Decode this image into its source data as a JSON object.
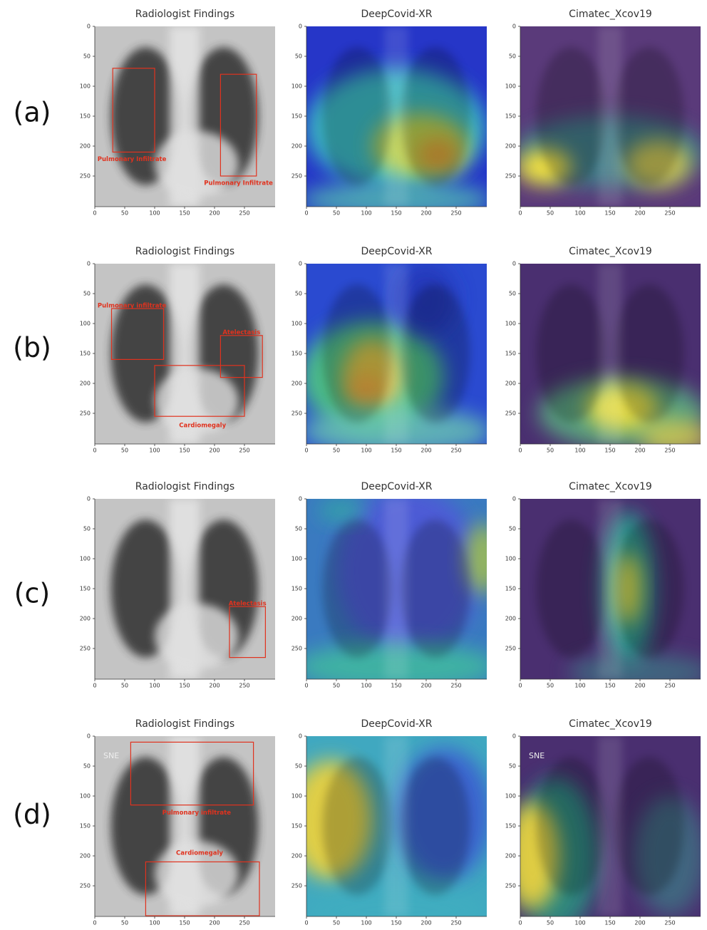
{
  "rows": [
    {
      "label": "(a)",
      "panels": [
        {
          "title": "Radiologist Findings",
          "annotations": [
            "Pulmonary Infiltrate",
            "Pulmonary Infiltrate"
          ]
        },
        {
          "title": "DeepCovid-XR"
        },
        {
          "title": "Cimatec_Xcov19"
        }
      ]
    },
    {
      "label": "(b)",
      "panels": [
        {
          "title": "Radiologist Findings",
          "annotations": [
            "Pulmonary infiltrate",
            "Atelectasis",
            "Cardiomegaly"
          ]
        },
        {
          "title": "DeepCovid-XR"
        },
        {
          "title": "Cimatec_Xcov19"
        }
      ]
    },
    {
      "label": "(c)",
      "panels": [
        {
          "title": "Radiologist Findings",
          "annotations": [
            "Atelectasis"
          ]
        },
        {
          "title": "DeepCovid-XR"
        },
        {
          "title": "Cimatec_Xcov19"
        }
      ]
    },
    {
      "label": "(d)",
      "panels": [
        {
          "title": "Radiologist Findings",
          "annotations": [
            "Pulmonary infiltrate",
            "Cardiomegaly"
          ],
          "image_text": "SNE"
        },
        {
          "title": "DeepCovid-XR"
        },
        {
          "title": "Cimatec_Xcov19",
          "image_text": "SNE"
        }
      ]
    }
  ],
  "axis_ticks": [
    0,
    50,
    100,
    150,
    200,
    250
  ]
}
